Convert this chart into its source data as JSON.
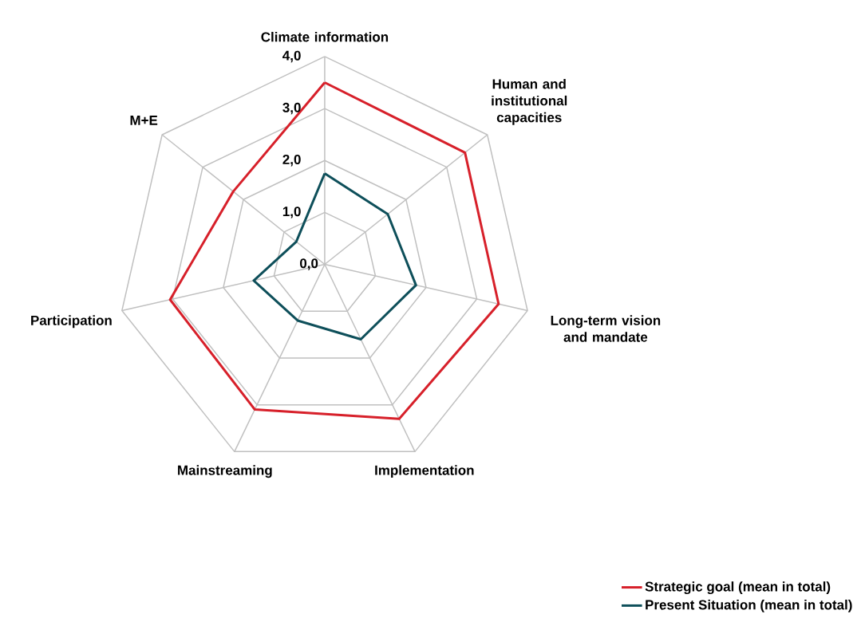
{
  "chart_data": {
    "type": "radar",
    "categories": [
      "Climate information",
      "Human and institutional capacities",
      "Long-term vision and mandate",
      "Implementation",
      "Mainstreaming",
      "Participation",
      "M+E"
    ],
    "series": [
      {
        "name": "Strategic goal (mean in total)",
        "color": "#d7202a",
        "values": [
          3.5,
          3.45,
          3.43,
          3.3,
          3.1,
          3.05,
          2.25
        ]
      },
      {
        "name": "Present Situation (mean in total)",
        "color": "#0e4f5a",
        "values": [
          1.75,
          1.55,
          1.8,
          1.6,
          1.2,
          1.4,
          0.7
        ]
      }
    ],
    "ylim": [
      0,
      4
    ],
    "yticks": [
      {
        "value": 0,
        "label": "0,0"
      },
      {
        "value": 1,
        "label": "1,0"
      },
      {
        "value": 2,
        "label": "2,0"
      },
      {
        "value": 3,
        "label": "3,0"
      },
      {
        "value": 4,
        "label": "4,0"
      }
    ],
    "grid": true,
    "legend": "bottom right"
  }
}
